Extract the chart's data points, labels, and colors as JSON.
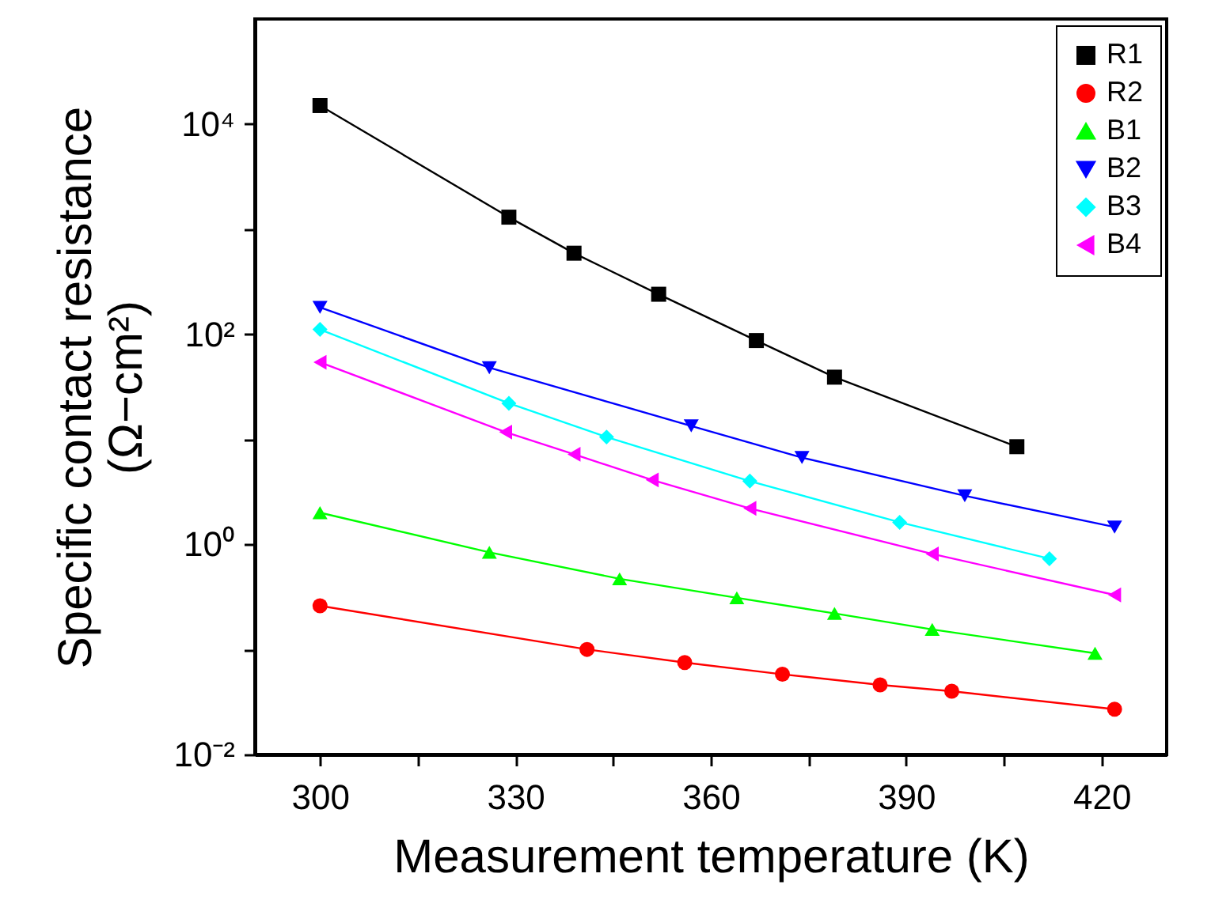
{
  "chart_data": {
    "type": "line",
    "xlabel": "Measurement temperature  (K)",
    "ylabel": "Specific contact resistance\n(Ω−cm²)",
    "log": "y",
    "xlim": [
      290,
      430
    ],
    "xticks": [
      300,
      {
        "value": 315,
        "label": null
      },
      330,
      {
        "value": 345,
        "label": null
      },
      360,
      {
        "value": 375,
        "label": null
      },
      390,
      {
        "value": 405,
        "label": null
      },
      420
    ],
    "ylim": [
      0.01,
      100000
    ],
    "yticks": [
      {
        "value": 0.01,
        "label": "10⁻²"
      },
      {
        "value": 0.1,
        "label": null
      },
      {
        "value": 1,
        "label": "10⁰"
      },
      {
        "value": 10,
        "label": null
      },
      {
        "value": 100,
        "label": "10²"
      },
      {
        "value": 1000,
        "label": null
      },
      {
        "value": 10000,
        "label": "10⁴"
      }
    ],
    "grid": false,
    "legend": "top right",
    "line_style": "solid",
    "series": [
      {
        "name": "R1",
        "color": "#000000",
        "marker": "square",
        "x": [
          300,
          329,
          339,
          352,
          367,
          379,
          407
        ],
        "values": [
          15000,
          1300,
          590,
          240,
          87,
          39,
          8.5
        ]
      },
      {
        "name": "R2",
        "color": "#ff0000",
        "marker": "circle",
        "x": [
          300,
          341,
          356,
          371,
          386,
          397,
          422
        ],
        "values": [
          0.26,
          0.1,
          0.075,
          0.058,
          0.046,
          0.04,
          0.027
        ]
      },
      {
        "name": "B1",
        "color": "#00ff00",
        "marker": "triangle",
        "x": [
          300,
          326,
          346,
          364,
          379,
          394,
          419
        ],
        "values": [
          2.0,
          0.84,
          0.47,
          0.31,
          0.22,
          0.155,
          0.092
        ]
      },
      {
        "name": "B2",
        "color": "#0000ff",
        "marker": "triangle-down",
        "x": [
          300,
          326,
          357,
          374,
          399,
          422
        ],
        "values": [
          180,
          48,
          13.4,
          6.7,
          2.9,
          1.46
        ]
      },
      {
        "name": "B3",
        "color": "#00ffff",
        "marker": "diamond",
        "x": [
          300,
          329,
          344,
          366,
          389,
          412
        ],
        "values": [
          111,
          22,
          10.5,
          4.0,
          1.62,
          0.73
        ]
      },
      {
        "name": "B4",
        "color": "#ff00ff",
        "marker": "triangle-left",
        "x": [
          300,
          328.5,
          339,
          351,
          366,
          394,
          422
        ],
        "values": [
          54,
          11.7,
          7.2,
          4.1,
          2.2,
          0.81,
          0.33
        ]
      }
    ]
  }
}
